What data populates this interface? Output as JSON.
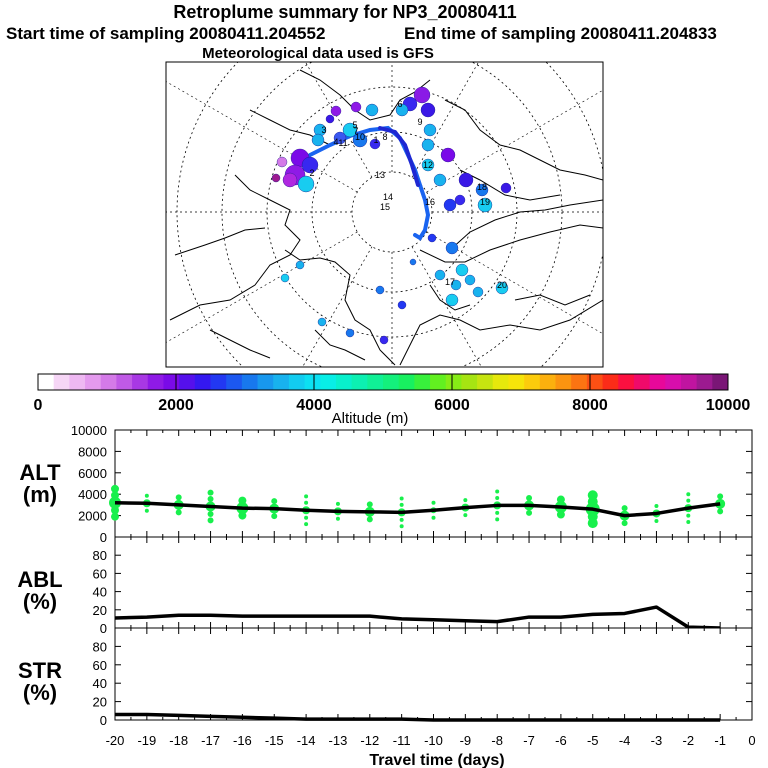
{
  "header": {
    "title": "Retroplume summary for NP3_20080411",
    "start": "Start time of sampling 20080411.204552",
    "end": "End time of sampling 20080411.204833",
    "met": "Meteorological data used is GFS"
  },
  "colorbar": {
    "ticks": [
      "0",
      "2000",
      "4000",
      "6000",
      "8000",
      "10000"
    ],
    "label": "Altitude (m)",
    "colors": [
      "#ffffff",
      "#f6d6f6",
      "#eeb8f2",
      "#e49aee",
      "#d47ae8",
      "#c05ae6",
      "#a838e4",
      "#8f1ae6",
      "#7a0ae8",
      "#5510ec",
      "#3418f0",
      "#2238f2",
      "#1c58f0",
      "#1878ee",
      "#1898ee",
      "#18b2ee",
      "#12ccf0",
      "#0ce0f2",
      "#08eee6",
      "#08f0cc",
      "#0cf0b2",
      "#10f096",
      "#14f07c",
      "#18f060",
      "#38f03c",
      "#62f020",
      "#86ec16",
      "#a6e412",
      "#c6e410",
      "#e6e80c",
      "#f6e40a",
      "#fccc0c",
      "#fcb00e",
      "#fc9410",
      "#fc7412",
      "#fc5014",
      "#fc2c18",
      "#fc1040",
      "#f00a6a",
      "#e8089a",
      "#d80eac",
      "#c014a0",
      "#9c1a90",
      "#7a1676"
    ]
  },
  "map": {
    "markers": [
      "1",
      "2",
      "3",
      "4",
      "5",
      "6",
      "7",
      "8",
      "9",
      "10",
      "11",
      "12",
      "13",
      "14",
      "15",
      "16",
      "17",
      "18",
      "19",
      "20"
    ]
  },
  "chart_data": [
    {
      "type": "line",
      "panel": "ALT",
      "ylabel": "ALT (m)",
      "xlabel": "Travel time (days)",
      "ylim": [
        0,
        10000
      ],
      "yticks": [
        0,
        2000,
        4000,
        6000,
        8000,
        10000
      ],
      "x": [
        -20,
        -19,
        -18,
        -17,
        -16,
        -15,
        -14,
        -13,
        -12,
        -11,
        -10,
        -9,
        -8,
        -7,
        -6,
        -5,
        -4,
        -3,
        -2,
        -1
      ],
      "values": [
        3200,
        3150,
        3000,
        2850,
        2700,
        2650,
        2500,
        2400,
        2350,
        2300,
        2500,
        2750,
        2950,
        2950,
        2800,
        2600,
        2000,
        2200,
        2700,
        3100
      ]
    },
    {
      "type": "line",
      "panel": "ABL",
      "ylabel": "ABL (%)",
      "ylim": [
        0,
        100
      ],
      "yticks": [
        0,
        20,
        40,
        60,
        80
      ],
      "x": [
        -20,
        -19,
        -18,
        -17,
        -16,
        -15,
        -14,
        -13,
        -12,
        -11,
        -10,
        -9,
        -8,
        -7,
        -6,
        -5,
        -4,
        -3,
        -2,
        -1
      ],
      "values": [
        11,
        12,
        14,
        14,
        13,
        13,
        13,
        13,
        13,
        10,
        9,
        8,
        7,
        12,
        12,
        15,
        16,
        23,
        1,
        0
      ]
    },
    {
      "type": "line",
      "panel": "STR",
      "ylabel": "STR (%)",
      "ylim": [
        0,
        100
      ],
      "yticks": [
        0,
        20,
        40,
        60,
        80
      ],
      "x": [
        -20,
        -19,
        -18,
        -17,
        -16,
        -15,
        -14,
        -13,
        -12,
        -11,
        -10,
        -9,
        -8,
        -7,
        -6,
        -5,
        -4,
        -3,
        -2,
        -1
      ],
      "values": [
        6,
        6,
        5,
        4,
        3,
        2,
        1,
        1,
        1,
        1,
        0,
        0,
        0,
        0,
        0,
        0,
        0,
        0,
        0,
        0
      ]
    }
  ],
  "xaxis": {
    "ticks": [
      "-20",
      "-19",
      "-18",
      "-17",
      "-16",
      "-15",
      "-14",
      "-13",
      "-12",
      "-11",
      "-10",
      "-9",
      "-8",
      "-7",
      "-6",
      "-5",
      "-4",
      "-3",
      "-2",
      "-1",
      "0"
    ],
    "label": "Travel time (days)"
  },
  "panels": {
    "alt": {
      "name": "ALT",
      "unit": "(m)",
      "ticks": [
        "0",
        "2000",
        "4000",
        "6000",
        "8000",
        "10000"
      ]
    },
    "abl": {
      "name": "ABL",
      "unit": "(%)",
      "ticks": [
        "0",
        "20",
        "40",
        "60",
        "80"
      ]
    },
    "str": {
      "name": "STR",
      "unit": "(%)",
      "ticks": [
        "0",
        "20",
        "40",
        "60",
        "80"
      ]
    }
  },
  "colors": {
    "line": "#000000",
    "dots": "#18f04c",
    "track": "#1a64f0"
  }
}
